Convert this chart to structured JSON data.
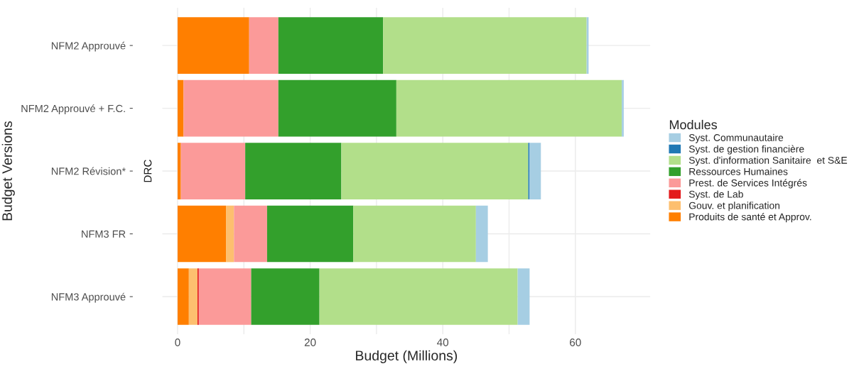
{
  "chart_data": {
    "type": "bar",
    "orientation": "horizontal",
    "stacked": true,
    "categories": [
      "NFM2 Approuvé",
      "NFM2 Approuvé + F.C.",
      "NFM2 Révision*",
      "NFM3 FR",
      "NFM3 Approuvé"
    ],
    "series": [
      {
        "name": "Produits de santé et Approv.",
        "color": "#ff7f00",
        "values": [
          10.8,
          0.9,
          0.5,
          7.3,
          1.7
        ]
      },
      {
        "name": "Gouv. et planification",
        "color": "#fdbf6f",
        "values": [
          0,
          0,
          0,
          1.2,
          1.3
        ]
      },
      {
        "name": "Syst. de Lab",
        "color": "#e31a1c",
        "values": [
          0,
          0,
          0,
          0,
          0.2
        ]
      },
      {
        "name": "Prest. de Services Intégrés",
        "color": "#fb9a99",
        "values": [
          4.4,
          14.3,
          9.7,
          5.0,
          7.9
        ]
      },
      {
        "name": "Ressources Humaines",
        "color": "#33a02c",
        "values": [
          15.8,
          17.8,
          14.5,
          13.0,
          10.3
        ]
      },
      {
        "name": "Syst. d'information Sanitaire  et S&E",
        "color": "#b2df8a",
        "values": [
          30.7,
          34.0,
          28.2,
          18.5,
          29.9
        ]
      },
      {
        "name": "Syst. de gestion financière",
        "color": "#1f78b4",
        "values": [
          0,
          0,
          0.2,
          0,
          0
        ]
      },
      {
        "name": "Syst. Communautaire",
        "color": "#a6cee3",
        "values": [
          0.3,
          0.3,
          1.7,
          1.8,
          1.8
        ]
      }
    ],
    "xlim": [
      -2.3,
      71.3
    ],
    "xticks": [
      0,
      {
        "value": 10,
        "label": null
      },
      20,
      {
        "value": 30,
        "label": null
      },
      40,
      {
        "value": 50,
        "label": null
      },
      60
    ],
    "xlabel": "Budget (Millions)",
    "ylabel": "Budget Versions",
    "legend_title": "Modules",
    "annotations": [
      "DRC"
    ],
    "grid": true,
    "legend": "right"
  }
}
